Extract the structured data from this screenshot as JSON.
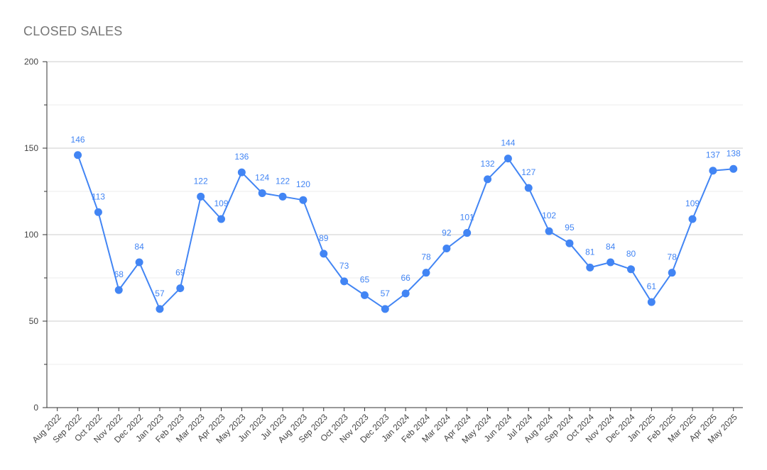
{
  "chart_data": {
    "type": "line",
    "title": "CLOSED SALES",
    "xlabel": "",
    "ylabel": "",
    "ylim": [
      0,
      200
    ],
    "yticks": [
      0,
      50,
      100,
      150,
      200
    ],
    "grid": true,
    "legend": "none",
    "color": "#4285f4",
    "categories": [
      "Aug 2022",
      "Sep 2022",
      "Oct 2022",
      "Nov 2022",
      "Dec 2022",
      "Jan 2023",
      "Feb 2023",
      "Mar 2023",
      "Apr 2023",
      "May 2023",
      "Jun 2023",
      "Jul 2023",
      "Aug 2023",
      "Sep 2023",
      "Oct 2023",
      "Nov 2023",
      "Dec 2023",
      "Jan 2024",
      "Feb 2024",
      "Mar 2024",
      "Apr 2024",
      "May 2024",
      "Jun 2024",
      "Jul 2024",
      "Aug 2024",
      "Sep 2024",
      "Oct 2024",
      "Nov 2024",
      "Dec 2024",
      "Jan 2025",
      "Feb 2025",
      "Mar 2025",
      "Apr 2025",
      "May 2025"
    ],
    "series": [
      {
        "values": [
          null,
          146,
          113,
          68,
          84,
          57,
          69,
          122,
          109,
          136,
          124,
          122,
          120,
          89,
          73,
          65,
          57,
          66,
          78,
          92,
          101,
          132,
          144,
          127,
          102,
          95,
          81,
          84,
          80,
          61,
          78,
          109,
          137,
          138
        ]
      }
    ]
  }
}
